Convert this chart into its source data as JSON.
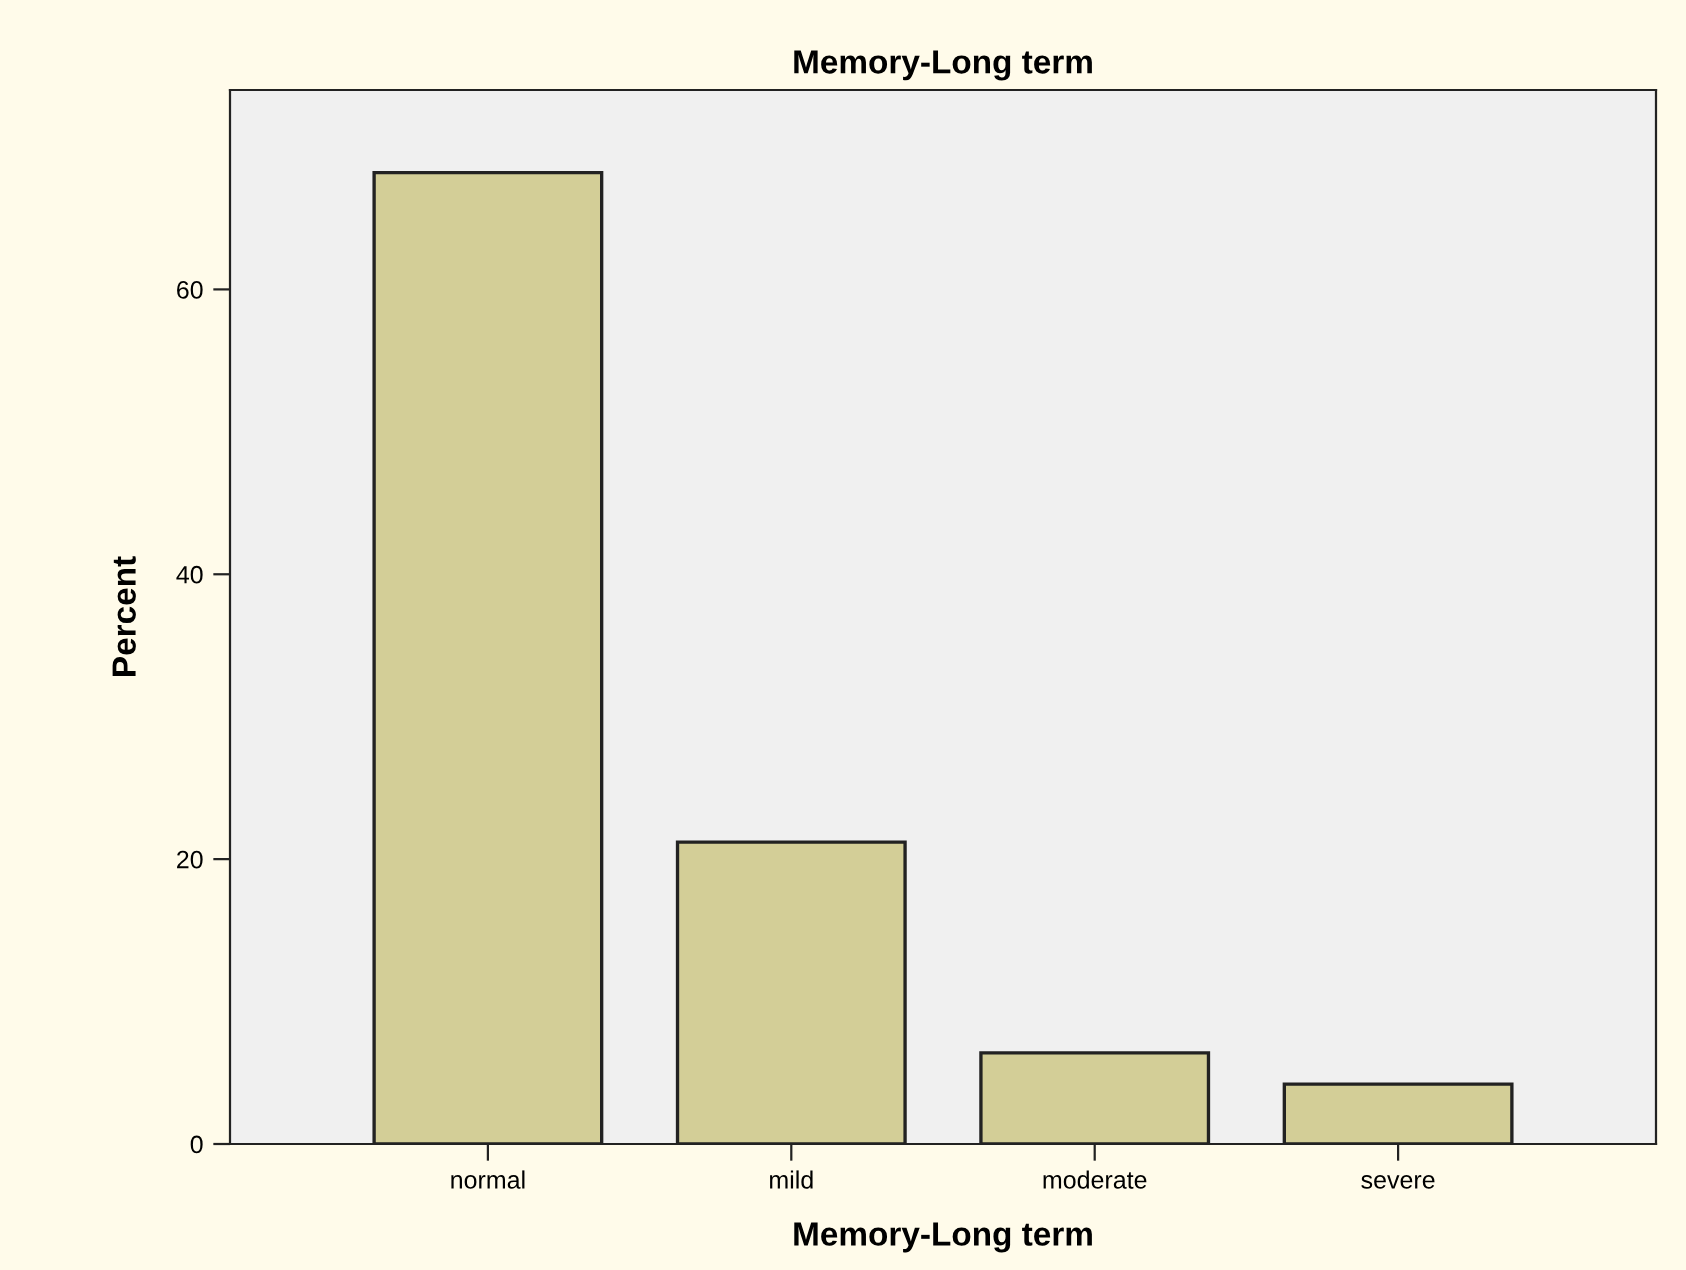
{
  "chart_data": {
    "type": "bar",
    "title": "Memory-Long term",
    "xlabel": "Memory-Long term",
    "ylabel": "Percent",
    "categories": [
      "normal",
      "mild",
      "moderate",
      "severe"
    ],
    "values": [
      68.2,
      21.2,
      6.4,
      4.2
    ],
    "color": "#d3ce97",
    "ylim": [
      0,
      74
    ],
    "yticks": [
      0,
      20,
      40,
      60
    ],
    "grid": false,
    "legend": false
  }
}
